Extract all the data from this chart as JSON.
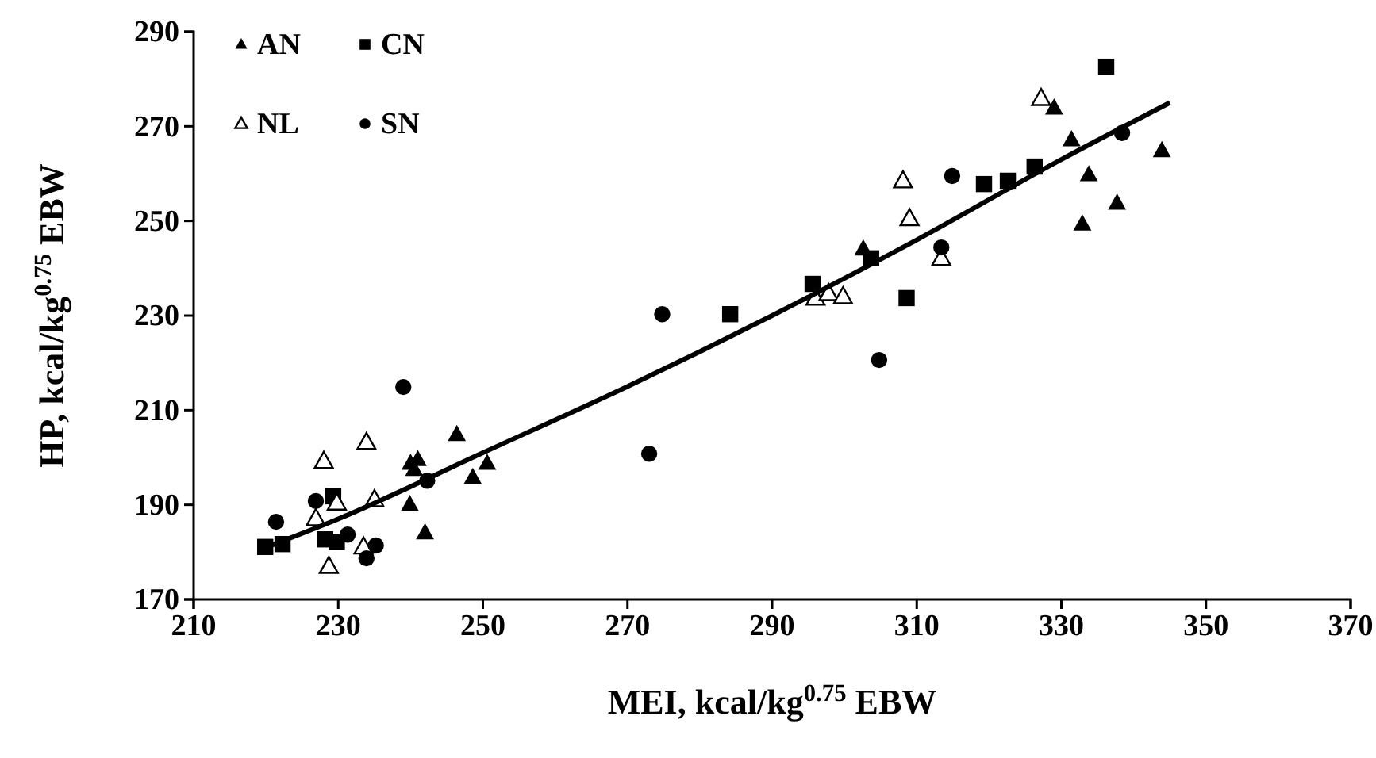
{
  "chart_data": {
    "type": "scatter",
    "xlabel": "MEI, kcal/kg$^{0.75}$ EBW",
    "ylabel": "HP, kcal/kg$^{0.75}$ EBW",
    "xlim": [
      210,
      370
    ],
    "xticks": [
      210,
      230,
      250,
      270,
      290,
      310,
      330,
      350,
      370
    ],
    "ylim": [
      170,
      290
    ],
    "yticks": [
      170,
      190,
      210,
      230,
      250,
      270,
      290
    ],
    "grid": false,
    "legend": "top left",
    "series": [
      {
        "name": "AN",
        "color": "#000000",
        "marker": "triangle",
        "x": [
          246.4,
          240.5,
          240,
          241,
          239.9,
          242,
          248.6,
          250.6,
          302.6,
          329,
          331.4,
          333.8,
          337.7,
          332.9,
          343.9
        ],
        "values": [
          204.9,
          197.5,
          198.8,
          199.6,
          190.1,
          184.1,
          195.8,
          198.8,
          244.1,
          273.9,
          267.2,
          259.8,
          253.8,
          249.4,
          264.9
        ]
      },
      {
        "name": "CN",
        "color": "#000000",
        "marker": "square",
        "x": [
          219.9,
          222.3,
          229.3,
          228.2,
          229.8,
          284.2,
          295.6,
          308.6,
          303.7,
          336.2,
          319.3,
          322.6,
          326.3
        ],
        "values": [
          181.1,
          181.7,
          191.8,
          182.7,
          182.1,
          230.3,
          236.7,
          233.7,
          242.1,
          282.6,
          257.8,
          258.5,
          261.5
        ]
      },
      {
        "name": "NL",
        "color": "#ffffff",
        "marker": "triangle",
        "x": [
          233.9,
          228,
          226.9,
          229.8,
          235,
          233.5,
          228.7,
          296,
          297.8,
          299.8,
          313.4,
          327.2,
          308.1,
          309
        ],
        "values": [
          203.2,
          199.2,
          187.1,
          190.4,
          191.1,
          181.1,
          177,
          233.7,
          234.7,
          234,
          242.1,
          275.9,
          258.5,
          250.5
        ]
      },
      {
        "name": "SN",
        "color": "#000000",
        "marker": "circle",
        "x": [
          239,
          221.4,
          226.9,
          231.3,
          233.9,
          235.2,
          242.3,
          274.8,
          273,
          304.8,
          313.4,
          314.9,
          338.4
        ],
        "values": [
          214.9,
          186.4,
          190.8,
          183.7,
          178.7,
          181.4,
          195.1,
          230.3,
          200.8,
          220.6,
          244.4,
          259.5,
          268.6
        ]
      },
      {
        "type": "line",
        "color": "#000000",
        "marker": "none",
        "x": [
          220,
          230,
          250,
          270,
          290,
          310,
          330,
          345
        ],
        "values": [
          181,
          187,
          201,
          215,
          230,
          246,
          263,
          275
        ]
      }
    ]
  }
}
